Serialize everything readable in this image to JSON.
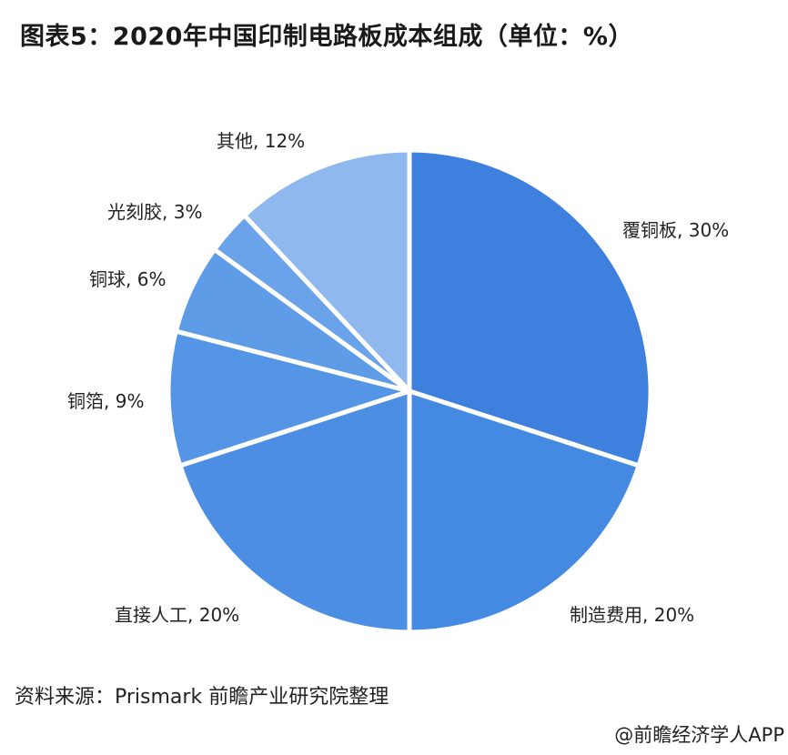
{
  "title": "图表5：2020年中国印制电路板成本组成（单位：%）",
  "source": "资料来源：Prismark 前瞻产业研究院整理",
  "credit": "@前瞻经济学人APP",
  "chart_data": {
    "type": "pie",
    "slices": [
      {
        "label": "覆铜板, 30%",
        "value": 30,
        "color": "#3e80de"
      },
      {
        "label": "制造费用, 20%",
        "value": 20,
        "color": "#458ae2"
      },
      {
        "label": "直接人工, 20%",
        "value": 20,
        "color": "#4b8ee3"
      },
      {
        "label": "铜箔, 9%",
        "value": 9,
        "color": "#5495e5"
      },
      {
        "label": "铜球, 6%",
        "value": 6,
        "color": "#5f9ce7"
      },
      {
        "label": "光刻胶, 3%",
        "value": 3,
        "color": "#6aa3e9"
      },
      {
        "label": "其他, 12%",
        "value": 12,
        "color": "#8eb8ee"
      }
    ]
  }
}
